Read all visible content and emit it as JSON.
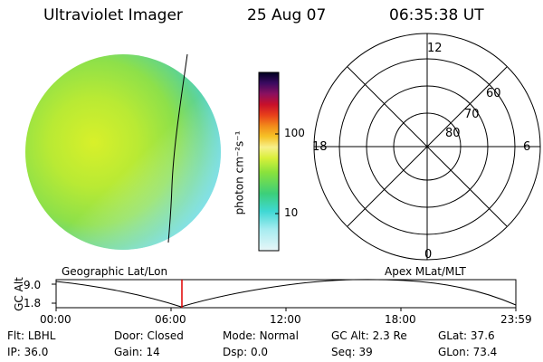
{
  "header": {
    "title": "Ultraviolet Imager",
    "date": "25 Aug 07",
    "time": "06:35:38 UT"
  },
  "colorbar": {
    "label": "photon cm⁻²s⁻¹",
    "ticks": [
      "100",
      "10"
    ]
  },
  "polar": {
    "mlt_labels": [
      "12",
      "18",
      "6",
      "0"
    ],
    "lat_labels": [
      "60",
      "70",
      "80"
    ]
  },
  "timeline": {
    "left_caption": "Geographic Lat/Lon",
    "right_caption": "Apex MLat/MLT",
    "y_axis_label": "GC Alt",
    "y_ticks": [
      "9.0",
      "1.8"
    ],
    "x_ticks": [
      "00:00",
      "06:00",
      "12:00",
      "18:00",
      "23:59"
    ],
    "current_time_marker": "06:35:38"
  },
  "info": {
    "row1": [
      {
        "label": "Flt:",
        "value": "LBHL"
      },
      {
        "label": "Door:",
        "value": "Closed"
      },
      {
        "label": "Mode:",
        "value": "Normal"
      },
      {
        "label": "GC Alt:",
        "value": "2.3 Re"
      },
      {
        "label": "GLat:",
        "value": "37.6"
      }
    ],
    "row2": [
      {
        "label": "IP:",
        "value": "36.0"
      },
      {
        "label": "Gain:",
        "value": "14"
      },
      {
        "label": "Dsp:",
        "value": "0.0"
      },
      {
        "label": "Seq:",
        "value": "39"
      },
      {
        "label": "GLon:",
        "value": "73.4"
      }
    ]
  },
  "colors": {
    "earth_disk": "#9be03a",
    "colorbar_top": "#000000",
    "marker_red": "#e00000"
  }
}
